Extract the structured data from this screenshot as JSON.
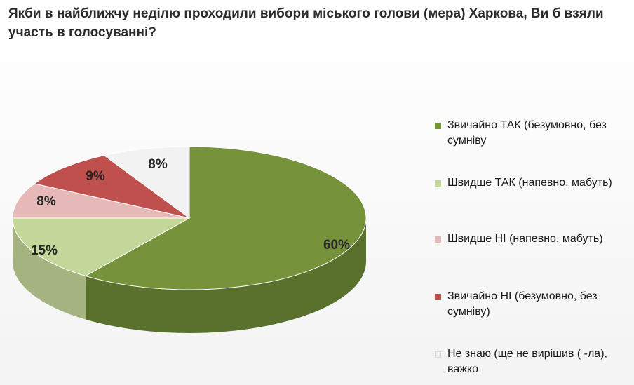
{
  "title": "Якби в найближчу неділю проходили вибори міського голови (мера) Харкова, Ви б взяли участь в голосуванні?",
  "chart_data": {
    "type": "pie",
    "title": "Якби в найближчу неділю проходили вибори міського голови (мера) Харкова, Ви б взяли участь в голосуванні?",
    "categories": [
      "Звичайно ТАК (безумовно, без сумніву",
      "Швидше ТАК (напевно, мабуть)",
      "Швидше НІ (напевно, мабуть)",
      "Звичайно НІ (безумовно, без сумніву)",
      "Не знаю (ще не вирішив ( -ла), важко"
    ],
    "values": [
      60,
      15,
      8,
      9,
      8
    ],
    "labels": [
      "60%",
      "15%",
      "8%",
      "9%",
      "8%"
    ],
    "colors": [
      "#76933c",
      "#c4d79b",
      "#e6b9b8",
      "#c0504d",
      "#f2f2f2"
    ],
    "legend": "right"
  }
}
